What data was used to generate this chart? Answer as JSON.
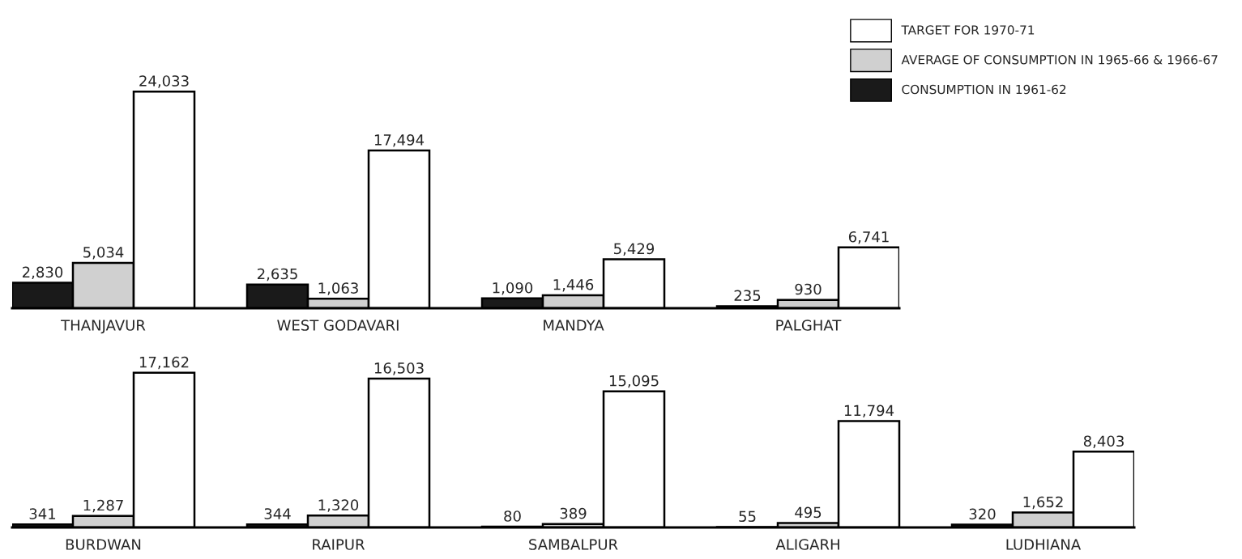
{
  "chart_data": [
    {
      "type": "bar",
      "categories": [
        "THANJAVUR",
        "WEST GODAVARI",
        "MANDYA",
        "PALGHAT"
      ],
      "legend": "top right",
      "series": [
        {
          "name": "CONSUMPTION IN 1961-62",
          "color": "#1a1a1a",
          "values": [
            2830,
            2635,
            1090,
            235
          ],
          "value_labels": [
            "2,830",
            "2,635",
            "1,090",
            "235"
          ]
        },
        {
          "name": "AVERAGE OF CONSUMPTION IN 1965-66 & 1966-67",
          "color": "#d0d0d0",
          "values": [
            5034,
            1063,
            1446,
            930
          ],
          "value_labels": [
            "5,034",
            "1,063",
            "1,446",
            "930"
          ]
        },
        {
          "name": "TARGET FOR 1970-71",
          "color": "#ffffff",
          "values": [
            24033,
            17494,
            5429,
            6741
          ],
          "value_labels": [
            "24,033",
            "17,494",
            "5,429",
            "6,741"
          ]
        }
      ]
    },
    {
      "type": "bar",
      "categories": [
        "BURDWAN",
        "RAIPUR",
        "SAMBALPUR",
        "ALIGARH",
        "LUDHIANA"
      ],
      "series": [
        {
          "color": "#1a1a1a",
          "values": [
            341,
            344,
            80,
            55,
            320
          ],
          "value_labels": [
            "341",
            "344",
            "80",
            "55",
            "320"
          ]
        },
        {
          "color": "#d0d0d0",
          "values": [
            1287,
            1320,
            389,
            495,
            1652
          ],
          "value_labels": [
            "1,287",
            "1,320",
            "389",
            "495",
            "1,652"
          ]
        },
        {
          "color": "#ffffff",
          "values": [
            17162,
            16503,
            15095,
            11794,
            8403
          ],
          "value_labels": [
            "17,162",
            "16,503",
            "15,095",
            "11,794",
            "8,403"
          ]
        }
      ]
    }
  ]
}
